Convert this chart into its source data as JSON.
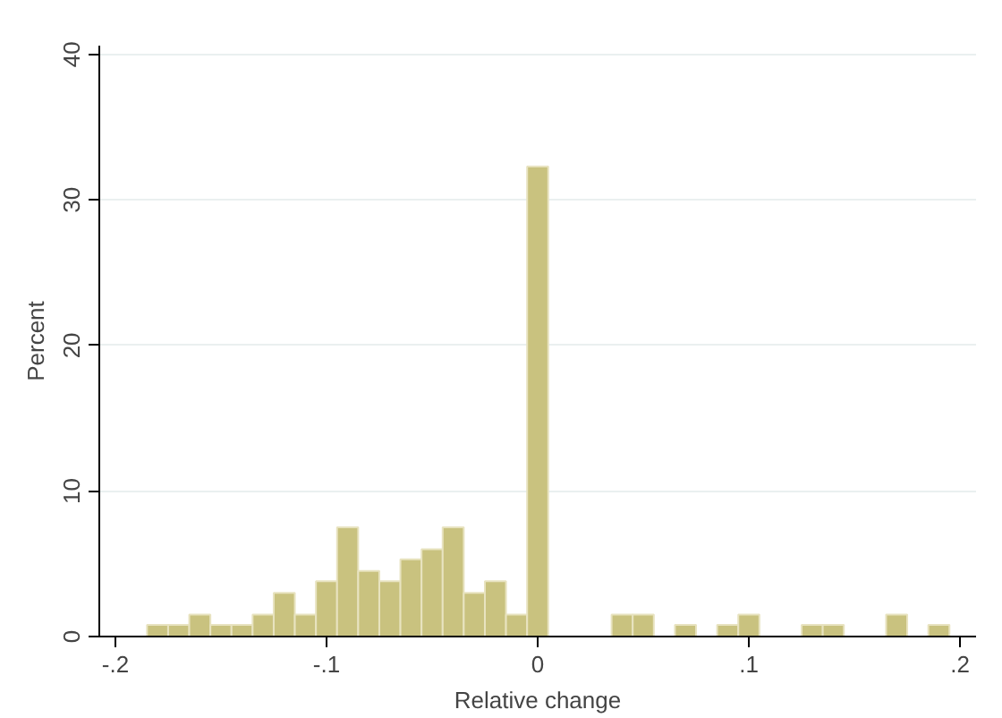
{
  "chart_data": {
    "type": "histogram",
    "xlabel": "Relative change",
    "ylabel": "Percent",
    "bins": [
      -0.185,
      -0.175,
      -0.165,
      -0.155,
      -0.145,
      -0.135,
      -0.125,
      -0.115,
      -0.105,
      -0.095,
      -0.085,
      -0.075,
      -0.065,
      -0.055,
      -0.045,
      -0.035,
      -0.025,
      -0.015,
      -0.005,
      0.005,
      0.015,
      0.025,
      0.035,
      0.045,
      0.055,
      0.065,
      0.075,
      0.085,
      0.095,
      0.105,
      0.115,
      0.125,
      0.135,
      0.145,
      0.155,
      0.165,
      0.175,
      0.185,
      0.195
    ],
    "values": [
      0.8,
      0.8,
      1.5,
      0.8,
      0.8,
      1.5,
      3,
      1.5,
      3.8,
      7.5,
      4.5,
      3.8,
      5.3,
      6,
      7.5,
      3,
      3.8,
      1.5,
      32.3,
      0,
      0,
      0,
      1.5,
      1.5,
      0,
      0.8,
      0,
      0.8,
      1.5,
      0,
      0,
      0.8,
      0.8,
      0,
      0,
      1.5,
      0,
      0.8
    ],
    "color": "#c9c27f",
    "xlim": [
      -0.2076,
      0.2076
    ],
    "ylim": [
      0,
      40.6
    ],
    "xticks": [
      {
        "value": -0.2,
        "label": "-.2"
      },
      {
        "value": -0.1,
        "label": "-.1"
      },
      0,
      {
        "value": 0.1,
        "label": ".1"
      },
      {
        "value": 0.2,
        "label": ".2"
      }
    ],
    "yticks": [
      0,
      10,
      20,
      30,
      40
    ],
    "grid": "y"
  }
}
